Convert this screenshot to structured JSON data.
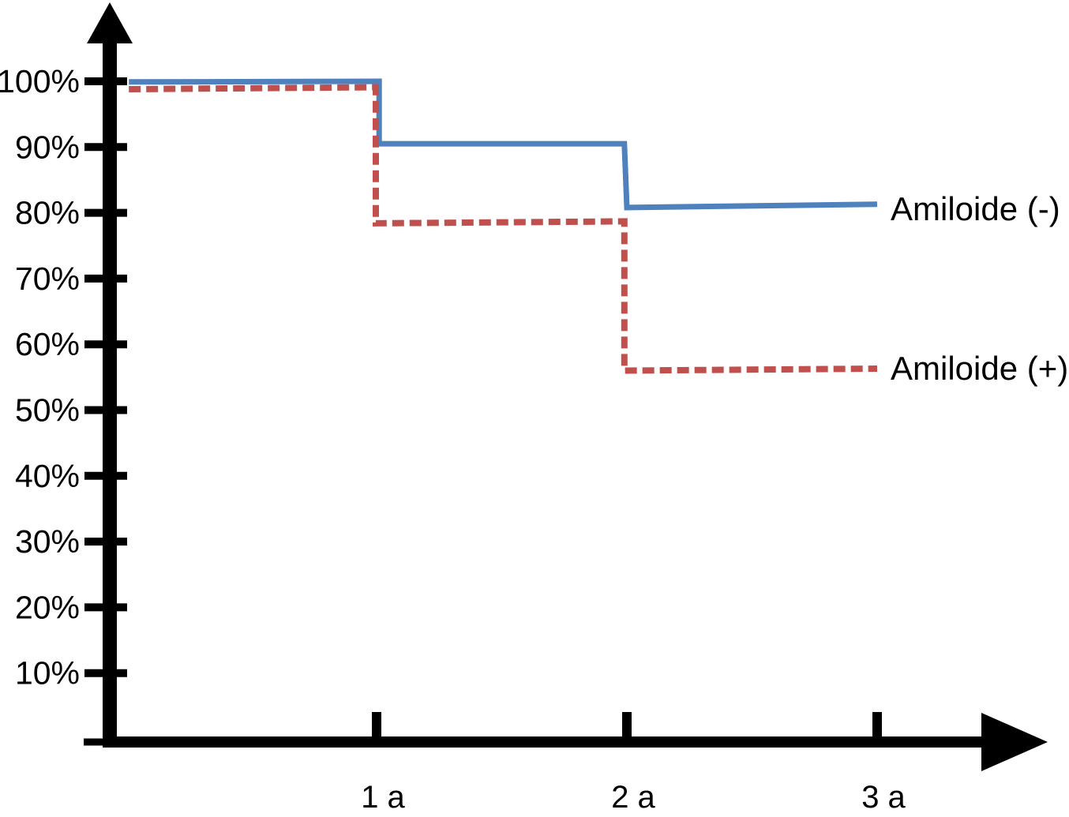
{
  "chart_data": {
    "type": "line",
    "subtype": "step-survival-curve",
    "title": "",
    "xlabel": "",
    "ylabel": "",
    "background_color": "#ffffff",
    "axis_color": "#000000",
    "grid": false,
    "legend_position": "right-of-line-ends",
    "xlim": [
      0,
      3.7
    ],
    "ylim": [
      0,
      100
    ],
    "x_unit": "a",
    "x_ticks": [
      {
        "value": 1,
        "label": "1 a"
      },
      {
        "value": 2,
        "label": "2 a"
      },
      {
        "value": 3,
        "label": "3 a"
      }
    ],
    "y_ticks": [
      {
        "value": 100,
        "label": "100%"
      },
      {
        "value": 90,
        "label": "90%"
      },
      {
        "value": 80,
        "label": "80%"
      },
      {
        "value": 70,
        "label": "70%"
      },
      {
        "value": 60,
        "label": "60%"
      },
      {
        "value": 50,
        "label": "50%"
      },
      {
        "value": 40,
        "label": "40%"
      },
      {
        "value": 30,
        "label": "30%"
      },
      {
        "value": 20,
        "label": "20%"
      },
      {
        "value": 10,
        "label": "10%"
      }
    ],
    "series": [
      {
        "name": "Amiloide (-)",
        "color": "#4F81BD",
        "line_style": "solid",
        "line_width": 7,
        "survival_steps_pct": {
          "0a": 100,
          "1a": 90,
          "2a": 80
        },
        "points": [
          [
            0.01,
            99.9
          ],
          [
            1.01,
            100.0
          ],
          [
            1.01,
            90.5
          ],
          [
            1.99,
            90.5
          ],
          [
            2.0,
            80.8
          ],
          [
            3.0,
            81.3
          ]
        ]
      },
      {
        "name": "Amiloide (+)",
        "color": "#C0504D",
        "line_style": "dashed",
        "line_width": 8,
        "survival_steps_pct": {
          "0a": 98.5,
          "1a": 78,
          "2a": 55.5
        },
        "points": [
          [
            0.01,
            98.8
          ],
          [
            0.997,
            99.1
          ],
          [
            0.997,
            78.4
          ],
          [
            1.99,
            78.7
          ],
          [
            1.99,
            56.0
          ],
          [
            3.0,
            56.3
          ]
        ]
      }
    ]
  }
}
